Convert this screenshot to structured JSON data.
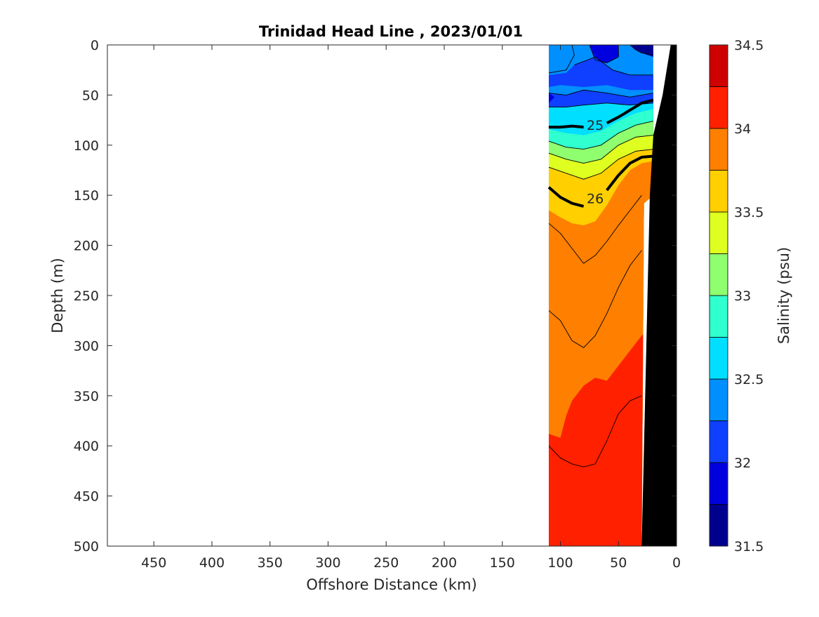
{
  "chart_data": {
    "type": "contour",
    "title": "Trinidad Head Line , 2023/01/01",
    "xlabel": "Offshore Distance (km)",
    "ylabel": "Depth (m)",
    "xlim": [
      490,
      0
    ],
    "ylim": [
      0,
      500
    ],
    "x_ticks": [
      450,
      400,
      350,
      300,
      250,
      200,
      150,
      100,
      50,
      0
    ],
    "y_ticks": [
      0,
      50,
      100,
      150,
      200,
      250,
      300,
      350,
      400,
      450,
      500
    ],
    "x_reversed": true,
    "y_reversed": true,
    "data_extent_km": [
      110,
      20
    ],
    "colorbar": {
      "label": "Salinity (psu)",
      "range": [
        31.5,
        34.5
      ],
      "step": 0.25,
      "tick_values": [
        34.5,
        34,
        33.5,
        33,
        32.5,
        32,
        31.5
      ],
      "tick_labels": [
        "34.5",
        "34",
        "33.5",
        "33",
        "32.5",
        "32",
        "31.5"
      ],
      "colors": [
        "#00008F",
        "#0000DF",
        "#0F3FFF",
        "#008FFF",
        "#00DFFF",
        "#30FFCF",
        "#8FFF6F",
        "#DFFF20",
        "#FFCF00",
        "#FF7F00",
        "#FF2000",
        "#CF0000"
      ]
    },
    "isopycnals": [
      {
        "label": "25",
        "points": [
          [
            110,
            82
          ],
          [
            100,
            82
          ],
          [
            90,
            81
          ],
          [
            80,
            82
          ],
          [
            70,
            82
          ],
          [
            60,
            78
          ],
          [
            50,
            72
          ],
          [
            40,
            65
          ],
          [
            30,
            58
          ],
          [
            20,
            55
          ]
        ]
      },
      {
        "label": "26",
        "points": [
          [
            110,
            142
          ],
          [
            100,
            152
          ],
          [
            90,
            158
          ],
          [
            80,
            161
          ],
          [
            70,
            159
          ],
          [
            60,
            145
          ],
          [
            50,
            130
          ],
          [
            40,
            118
          ],
          [
            30,
            112
          ],
          [
            20,
            111
          ]
        ]
      }
    ],
    "salinity_contours": [
      {
        "value": 31.75,
        "points": [
          [
            40,
            0
          ],
          [
            35,
            5
          ],
          [
            30,
            8
          ],
          [
            20,
            10
          ]
        ]
      },
      {
        "value": 32.25,
        "points": [
          [
            110,
            48
          ],
          [
            95,
            50
          ],
          [
            80,
            45
          ],
          [
            60,
            48
          ],
          [
            40,
            52
          ],
          [
            20,
            48
          ]
        ]
      },
      {
        "value": 32.5,
        "points": [
          [
            110,
            62
          ],
          [
            95,
            62
          ],
          [
            80,
            60
          ],
          [
            60,
            58
          ],
          [
            40,
            60
          ],
          [
            20,
            58
          ]
        ]
      },
      {
        "value": 33.0,
        "points": [
          [
            110,
            96
          ],
          [
            95,
            102
          ],
          [
            80,
            104
          ],
          [
            65,
            100
          ],
          [
            50,
            88
          ],
          [
            35,
            80
          ],
          [
            20,
            76
          ]
        ]
      },
      {
        "value": 33.25,
        "points": [
          [
            110,
            108
          ],
          [
            95,
            114
          ],
          [
            80,
            118
          ],
          [
            65,
            114
          ],
          [
            50,
            100
          ],
          [
            35,
            92
          ],
          [
            20,
            90
          ]
        ]
      },
      {
        "value": 33.5,
        "points": [
          [
            110,
            122
          ],
          [
            95,
            128
          ],
          [
            80,
            134
          ],
          [
            65,
            128
          ],
          [
            50,
            114
          ],
          [
            35,
            106
          ],
          [
            20,
            104
          ]
        ]
      },
      {
        "value": 34.0,
        "points": [
          [
            110,
            178
          ],
          [
            100,
            188
          ],
          [
            90,
            203
          ],
          [
            80,
            218
          ],
          [
            70,
            210
          ],
          [
            60,
            196
          ],
          [
            50,
            180
          ],
          [
            40,
            165
          ],
          [
            30,
            150
          ]
        ]
      },
      {
        "value": 34.0,
        "points": [
          [
            110,
            265
          ],
          [
            100,
            275
          ],
          [
            90,
            295
          ],
          [
            80,
            302
          ],
          [
            70,
            290
          ],
          [
            60,
            268
          ],
          [
            50,
            242
          ],
          [
            40,
            220
          ],
          [
            30,
            205
          ]
        ]
      },
      {
        "value": 34.25,
        "points": [
          [
            110,
            400
          ],
          [
            100,
            412
          ],
          [
            90,
            418
          ],
          [
            80,
            421
          ],
          [
            70,
            418
          ],
          [
            60,
            395
          ],
          [
            50,
            368
          ],
          [
            40,
            355
          ],
          [
            30,
            350
          ]
        ]
      }
    ],
    "bathymetry_km": [
      [
        5,
        0
      ],
      [
        12,
        50
      ],
      [
        20,
        90
      ],
      [
        23,
        150
      ],
      [
        25,
        250
      ],
      [
        28,
        400
      ],
      [
        30,
        500
      ]
    ],
    "grid": false
  }
}
